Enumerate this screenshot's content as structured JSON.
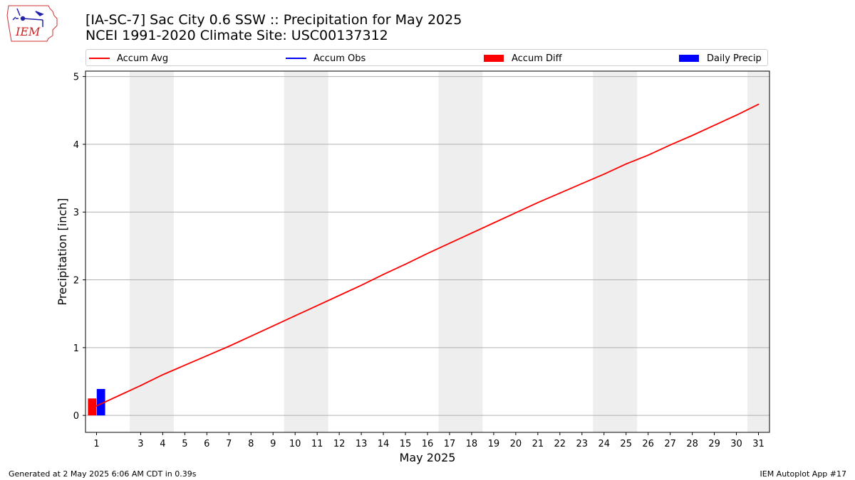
{
  "header": {
    "title_line1": "[IA-SC-7] Sac City 0.6 SSW :: Precipitation for May 2025",
    "title_line2": "NCEI 1991-2020 Climate Site: USC00137312",
    "logo_text": "IEM"
  },
  "legend": {
    "items": [
      {
        "label": "Accum Avg",
        "kind": "line",
        "color": "#ff0000"
      },
      {
        "label": "Accum Obs",
        "kind": "line",
        "color": "#0000ff"
      },
      {
        "label": "Accum Diff",
        "kind": "patch",
        "color": "#ff0000"
      },
      {
        "label": "Daily Precip",
        "kind": "patch",
        "color": "#0000ff"
      }
    ]
  },
  "chart_data": {
    "type": "line",
    "xlabel": "May 2025",
    "ylabel": "Precipitation [inch]",
    "xlim": [
      0.5,
      31.5
    ],
    "ylim": [
      -0.25,
      5.08
    ],
    "x_ticks": [
      1,
      3,
      4,
      5,
      6,
      7,
      8,
      9,
      10,
      11,
      12,
      13,
      14,
      15,
      16,
      17,
      18,
      19,
      20,
      21,
      22,
      23,
      24,
      25,
      26,
      27,
      28,
      29,
      30,
      31
    ],
    "y_ticks": [
      0,
      1,
      2,
      3,
      4,
      5
    ],
    "grid": "horizontal",
    "weekend_shading": [
      [
        2.5,
        4.5
      ],
      [
        9.5,
        11.5
      ],
      [
        16.5,
        18.5
      ],
      [
        23.5,
        25.5
      ],
      [
        30.5,
        31.5
      ]
    ],
    "series": [
      {
        "name": "Accum Avg",
        "color": "#ff0000",
        "x": [
          1,
          2,
          3,
          4,
          5,
          6,
          7,
          8,
          9,
          10,
          11,
          12,
          13,
          14,
          15,
          16,
          17,
          18,
          19,
          20,
          21,
          22,
          23,
          24,
          25,
          26,
          27,
          28,
          29,
          30,
          31
        ],
        "values": [
          0.14,
          0.29,
          0.44,
          0.6,
          0.74,
          0.88,
          1.02,
          1.17,
          1.32,
          1.47,
          1.62,
          1.77,
          1.92,
          2.08,
          2.23,
          2.39,
          2.54,
          2.69,
          2.84,
          2.99,
          3.14,
          3.28,
          3.42,
          3.56,
          3.71,
          3.84,
          3.99,
          4.13,
          4.28,
          4.43,
          4.59
        ]
      }
    ],
    "bars": [
      {
        "name": "Accum Diff",
        "color": "#ff0000",
        "x": 1,
        "offset": -0.2,
        "width": 0.38,
        "value": 0.25
      },
      {
        "name": "Daily Precip",
        "color": "#0000ff",
        "x": 1,
        "offset": 0.2,
        "width": 0.38,
        "value": 0.39
      }
    ]
  },
  "footer": {
    "left": "Generated at 2 May 2025 6:06 AM CDT in 0.39s",
    "right": "IEM Autoplot App #17"
  }
}
